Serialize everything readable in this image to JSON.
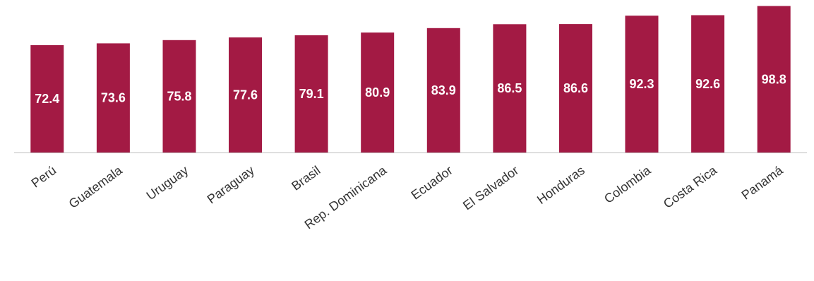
{
  "chart_data": {
    "type": "bar",
    "categories": [
      "Perú",
      "Guatemala",
      "Uruguay",
      "Paraguay",
      "Brasil",
      "Rep. Dominicana",
      "Ecuador",
      "El Salvador",
      "Honduras",
      "Colombia",
      "Costa Rica",
      "Panamá"
    ],
    "values": [
      72.4,
      73.6,
      75.8,
      77.6,
      79.1,
      80.9,
      83.9,
      86.5,
      86.6,
      92.3,
      92.6,
      98.8
    ],
    "data_labels": [
      "72.4",
      "73.6",
      "75.8",
      "77.6",
      "79.1",
      "80.9",
      "83.9",
      "86.5",
      "86.6",
      "92.3",
      "92.6",
      "98.8"
    ],
    "title": "",
    "xlabel": "",
    "ylabel": "",
    "ylim": [
      0,
      100
    ],
    "grid": false,
    "legend": "none",
    "bar_color": "#a31a44",
    "axis_color": "#bfbfbf",
    "label_color": "#ffffff",
    "tick_color": "#333333"
  }
}
